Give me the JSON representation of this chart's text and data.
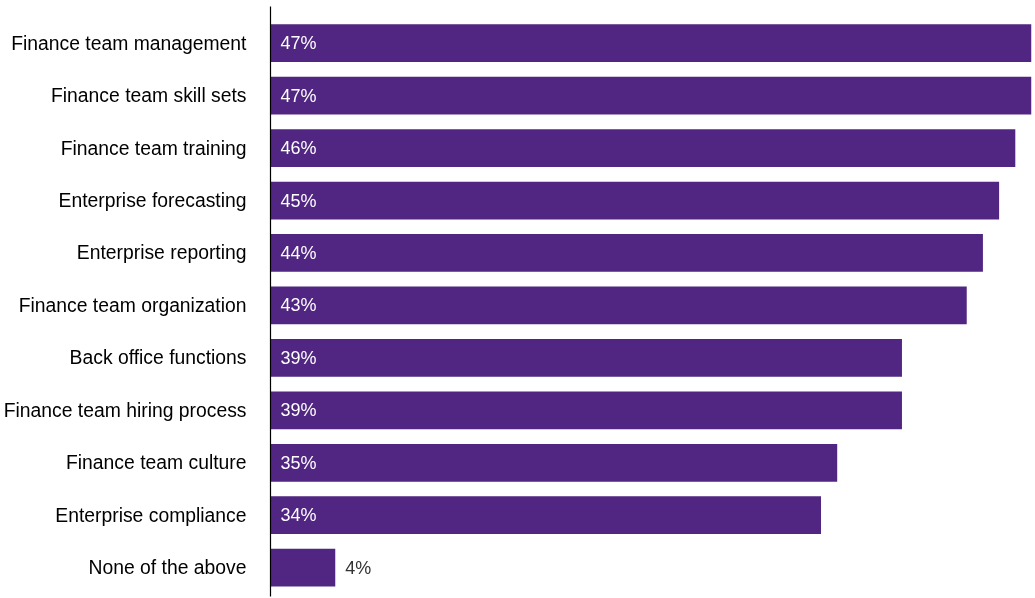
{
  "chart_data": {
    "type": "bar",
    "orientation": "horizontal",
    "categories": [
      "Finance team management",
      "Finance team skill sets",
      "Finance team training",
      "Enterprise forecasting",
      "Enterprise reporting",
      "Finance team organization",
      "Back office functions",
      "Finance team hiring process",
      "Finance team culture",
      "Enterprise compliance",
      "None of the above"
    ],
    "values": [
      47,
      47,
      46,
      45,
      44,
      43,
      39,
      39,
      35,
      34,
      4
    ],
    "value_labels": [
      "47%",
      "47%",
      "46%",
      "45%",
      "44%",
      "43%",
      "39%",
      "39%",
      "35%",
      "34%",
      "4%"
    ],
    "color": "#512682",
    "grid": false,
    "tick_labels": "y"
  }
}
